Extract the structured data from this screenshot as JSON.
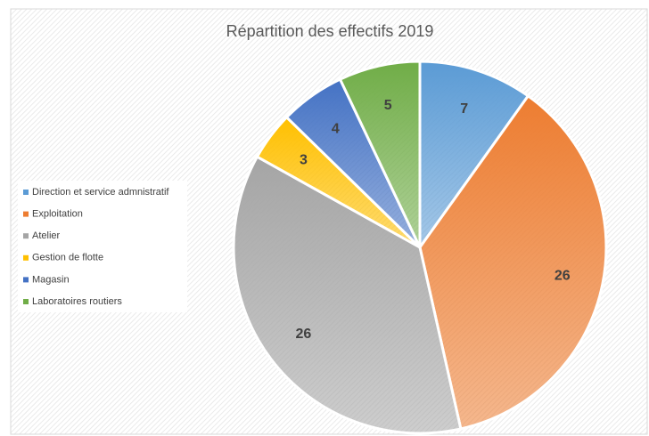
{
  "chart_data": {
    "type": "pie",
    "title": "Répartition des effectifs 2019",
    "categories": [
      "Direction et service admnistratif",
      "Exploitation",
      "Atelier",
      "Gestion de flotte",
      "Magasin",
      "Laboratoires routiers"
    ],
    "values": [
      7,
      26,
      26,
      3,
      4,
      5
    ],
    "colors": [
      "#5b9bd5",
      "#ed7d31",
      "#a5a5a5",
      "#ffc000",
      "#4472c4",
      "#70ad47"
    ],
    "legend": "left"
  }
}
